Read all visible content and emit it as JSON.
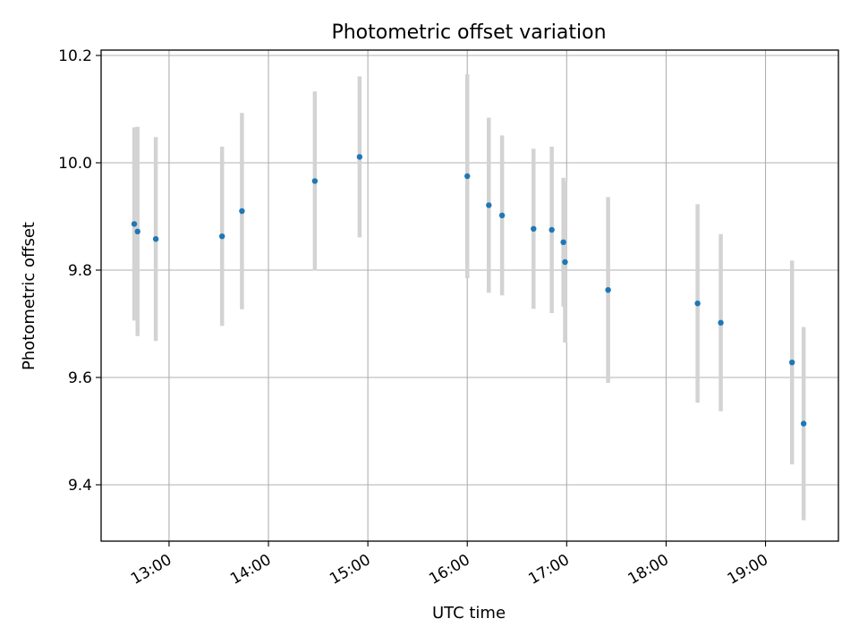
{
  "chart_data": {
    "type": "scatter",
    "title": "Photometric offset variation",
    "xlabel": "UTC time",
    "ylabel": "Photometric offset",
    "xlim": [
      "12:19",
      "19:44"
    ],
    "ylim": [
      9.295,
      10.21
    ],
    "x_ticks": [
      "13:00",
      "14:00",
      "15:00",
      "16:00",
      "17:00",
      "18:00",
      "19:00"
    ],
    "y_ticks": [
      9.4,
      9.6,
      9.8,
      10.0,
      10.2
    ],
    "y_tick_labels": [
      "9.4",
      "9.6",
      "9.8",
      "10.0",
      "10.2"
    ],
    "grid": true,
    "colors": {
      "points": "#1f77b4",
      "error_bars": "#d3d3d3",
      "grid": "#b0b0b0"
    },
    "series": [
      {
        "x": [
          "12:39",
          "12:41",
          "12:52",
          "13:32",
          "13:44",
          "14:28",
          "14:55",
          "16:00",
          "16:13",
          "16:21",
          "16:40",
          "16:51",
          "16:58",
          "16:59",
          "17:25",
          "18:19",
          "18:33",
          "19:16",
          "19:23"
        ],
        "y": [
          9.886,
          9.872,
          9.858,
          9.863,
          9.91,
          9.966,
          10.011,
          9.975,
          9.921,
          9.902,
          9.877,
          9.875,
          9.852,
          9.815,
          9.763,
          9.738,
          9.702,
          9.628,
          9.514
        ],
        "yerr": [
          0.18,
          0.195,
          0.19,
          0.167,
          0.183,
          0.167,
          0.15,
          0.19,
          0.163,
          0.149,
          0.149,
          0.155,
          0.12,
          0.15,
          0.173,
          0.185,
          0.165,
          0.19,
          0.18
        ]
      }
    ]
  }
}
